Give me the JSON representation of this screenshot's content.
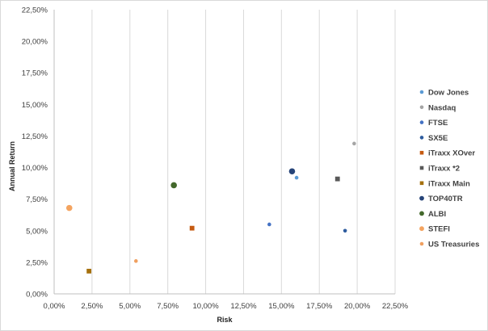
{
  "chart_data": {
    "type": "scatter",
    "xlabel": "Risk",
    "ylabel": "Annual Return",
    "xlim": [
      0,
      22.5
    ],
    "ylim": [
      0,
      22.5
    ],
    "x_ticks": [
      "0,00%",
      "2,50%",
      "5,00%",
      "7,50%",
      "10,00%",
      "12,50%",
      "15,00%",
      "17,50%",
      "20,00%",
      "22,50%"
    ],
    "y_ticks": [
      "0,00%",
      "2,50%",
      "5,00%",
      "7,50%",
      "10,00%",
      "12,50%",
      "15,00%",
      "17,50%",
      "20,00%",
      "22,50%"
    ],
    "grid": "vertical-major",
    "legend_position": "right",
    "series": [
      {
        "name": "Dow Jones",
        "color": "#5b9bd5",
        "marker": "circle",
        "size": "small",
        "points": [
          {
            "x": 16.0,
            "y": 9.2
          }
        ]
      },
      {
        "name": "Nasdaq",
        "color": "#a5a5a5",
        "marker": "circle",
        "size": "small",
        "points": [
          {
            "x": 19.8,
            "y": 11.9
          }
        ]
      },
      {
        "name": "FTSE",
        "color": "#4472c4",
        "marker": "circle",
        "size": "small",
        "points": [
          {
            "x": 14.2,
            "y": 5.5
          }
        ]
      },
      {
        "name": "SX5E",
        "color": "#2e5c9e",
        "marker": "circle",
        "size": "small",
        "points": [
          {
            "x": 19.2,
            "y": 5.0
          }
        ]
      },
      {
        "name": "iTraxx XOver",
        "color": "#c55a11",
        "marker": "square",
        "size": "medium",
        "points": [
          {
            "x": 9.1,
            "y": 5.2
          }
        ]
      },
      {
        "name": "iTraxx *2",
        "color": "#595959",
        "marker": "square",
        "size": "medium",
        "points": [
          {
            "x": 18.7,
            "y": 9.1
          }
        ]
      },
      {
        "name": "iTraxx Main",
        "color": "#a5700d",
        "marker": "square",
        "size": "medium",
        "points": [
          {
            "x": 2.3,
            "y": 1.8
          }
        ]
      },
      {
        "name": "TOP40TR",
        "color": "#264478",
        "marker": "circle",
        "size": "large",
        "points": [
          {
            "x": 15.7,
            "y": 9.7
          }
        ]
      },
      {
        "name": "ALBI",
        "color": "#43682b",
        "marker": "circle",
        "size": "large",
        "points": [
          {
            "x": 7.9,
            "y": 8.6
          }
        ]
      },
      {
        "name": "STEFI",
        "color": "#f4a460",
        "marker": "circle",
        "size": "large",
        "points": [
          {
            "x": 1.0,
            "y": 6.8
          }
        ]
      },
      {
        "name": "US Treasuries",
        "color": "#f0a060",
        "marker": "circle",
        "size": "small",
        "points": [
          {
            "x": 5.4,
            "y": 2.6
          }
        ]
      }
    ]
  }
}
